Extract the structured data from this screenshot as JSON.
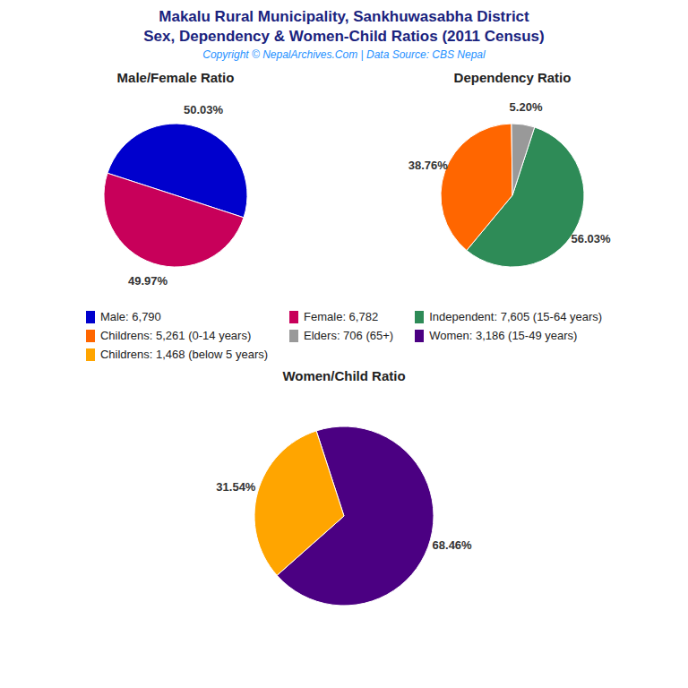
{
  "title": "Makalu Rural Municipality, Sankhuwasabha District",
  "subtitle": "Sex, Dependency & Women-Child Ratios (2011 Census)",
  "annotations": [
    "Copyright © NepalArchives.Com | Data Source: CBS Nepal"
  ],
  "legend": "center",
  "chart_data": [
    {
      "type": "pie",
      "title": "Male/Female Ratio",
      "categories": [
        "Male: 6,790",
        "Female: 6,782"
      ],
      "values": [
        50.03,
        49.97
      ],
      "value_labels": [
        "50.03%",
        "49.97%"
      ],
      "colors": [
        "#0000CD",
        "#C8005A"
      ],
      "data_labels": true
    },
    {
      "type": "pie",
      "title": "Dependency Ratio",
      "categories": [
        "Independent: 7,605 (15-64 years)",
        "Childrens: 5,261 (0-14 years)",
        "Elders: 706 (65+)"
      ],
      "values": [
        56.03,
        38.76,
        5.2
      ],
      "value_labels": [
        "56.03%",
        "38.76%",
        "5.20%"
      ],
      "colors": [
        "#2E8B57",
        "#FF6600",
        "#999999"
      ],
      "data_labels": true
    },
    {
      "type": "pie",
      "title": "Women/Child Ratio",
      "categories": [
        "Women: 3,186 (15-49 years)",
        "Childrens: 1,468 (below 5 years)"
      ],
      "values": [
        68.46,
        31.54
      ],
      "value_labels": [
        "68.46%",
        "31.54%"
      ],
      "colors": [
        "#4B0082",
        "#FFA500"
      ],
      "data_labels": true
    }
  ]
}
